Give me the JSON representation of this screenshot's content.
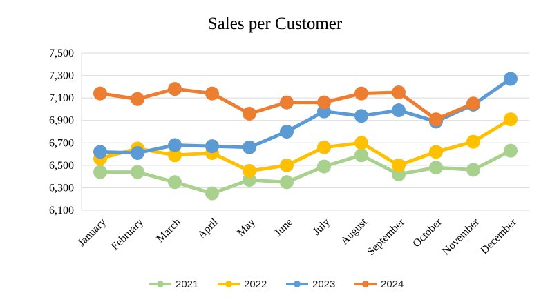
{
  "chart_data": {
    "type": "line",
    "title": "Sales per Customer",
    "xlabel": "",
    "ylabel": "",
    "categories": [
      "January",
      "February",
      "March",
      "April",
      "May",
      "June",
      "July",
      "August",
      "September",
      "October",
      "November",
      "December"
    ],
    "ylim": [
      6100,
      7500
    ],
    "yticks": [
      "6,100",
      "6,300",
      "6,500",
      "6,700",
      "6,900",
      "7,100",
      "7,300",
      "7,500"
    ],
    "grid": true,
    "legend_position": "bottom",
    "series": [
      {
        "name": "2021",
        "color": "#A9D18E",
        "values": [
          6440,
          6440,
          6350,
          6250,
          6370,
          6350,
          6490,
          6590,
          6420,
          6480,
          6460,
          6630
        ]
      },
      {
        "name": "2022",
        "color": "#FFC000",
        "values": [
          6560,
          6650,
          6590,
          6610,
          6450,
          6500,
          6660,
          6700,
          6500,
          6620,
          6710,
          6910
        ]
      },
      {
        "name": "2023",
        "color": "#5B9BD5",
        "values": [
          6620,
          6610,
          6680,
          6670,
          6660,
          6800,
          6980,
          6940,
          6990,
          6890,
          7040,
          7270
        ]
      },
      {
        "name": "2024",
        "color": "#ED7D31",
        "values": [
          7140,
          7090,
          7180,
          7140,
          6960,
          7060,
          7060,
          7140,
          7150,
          6910,
          7050,
          null
        ]
      }
    ]
  }
}
